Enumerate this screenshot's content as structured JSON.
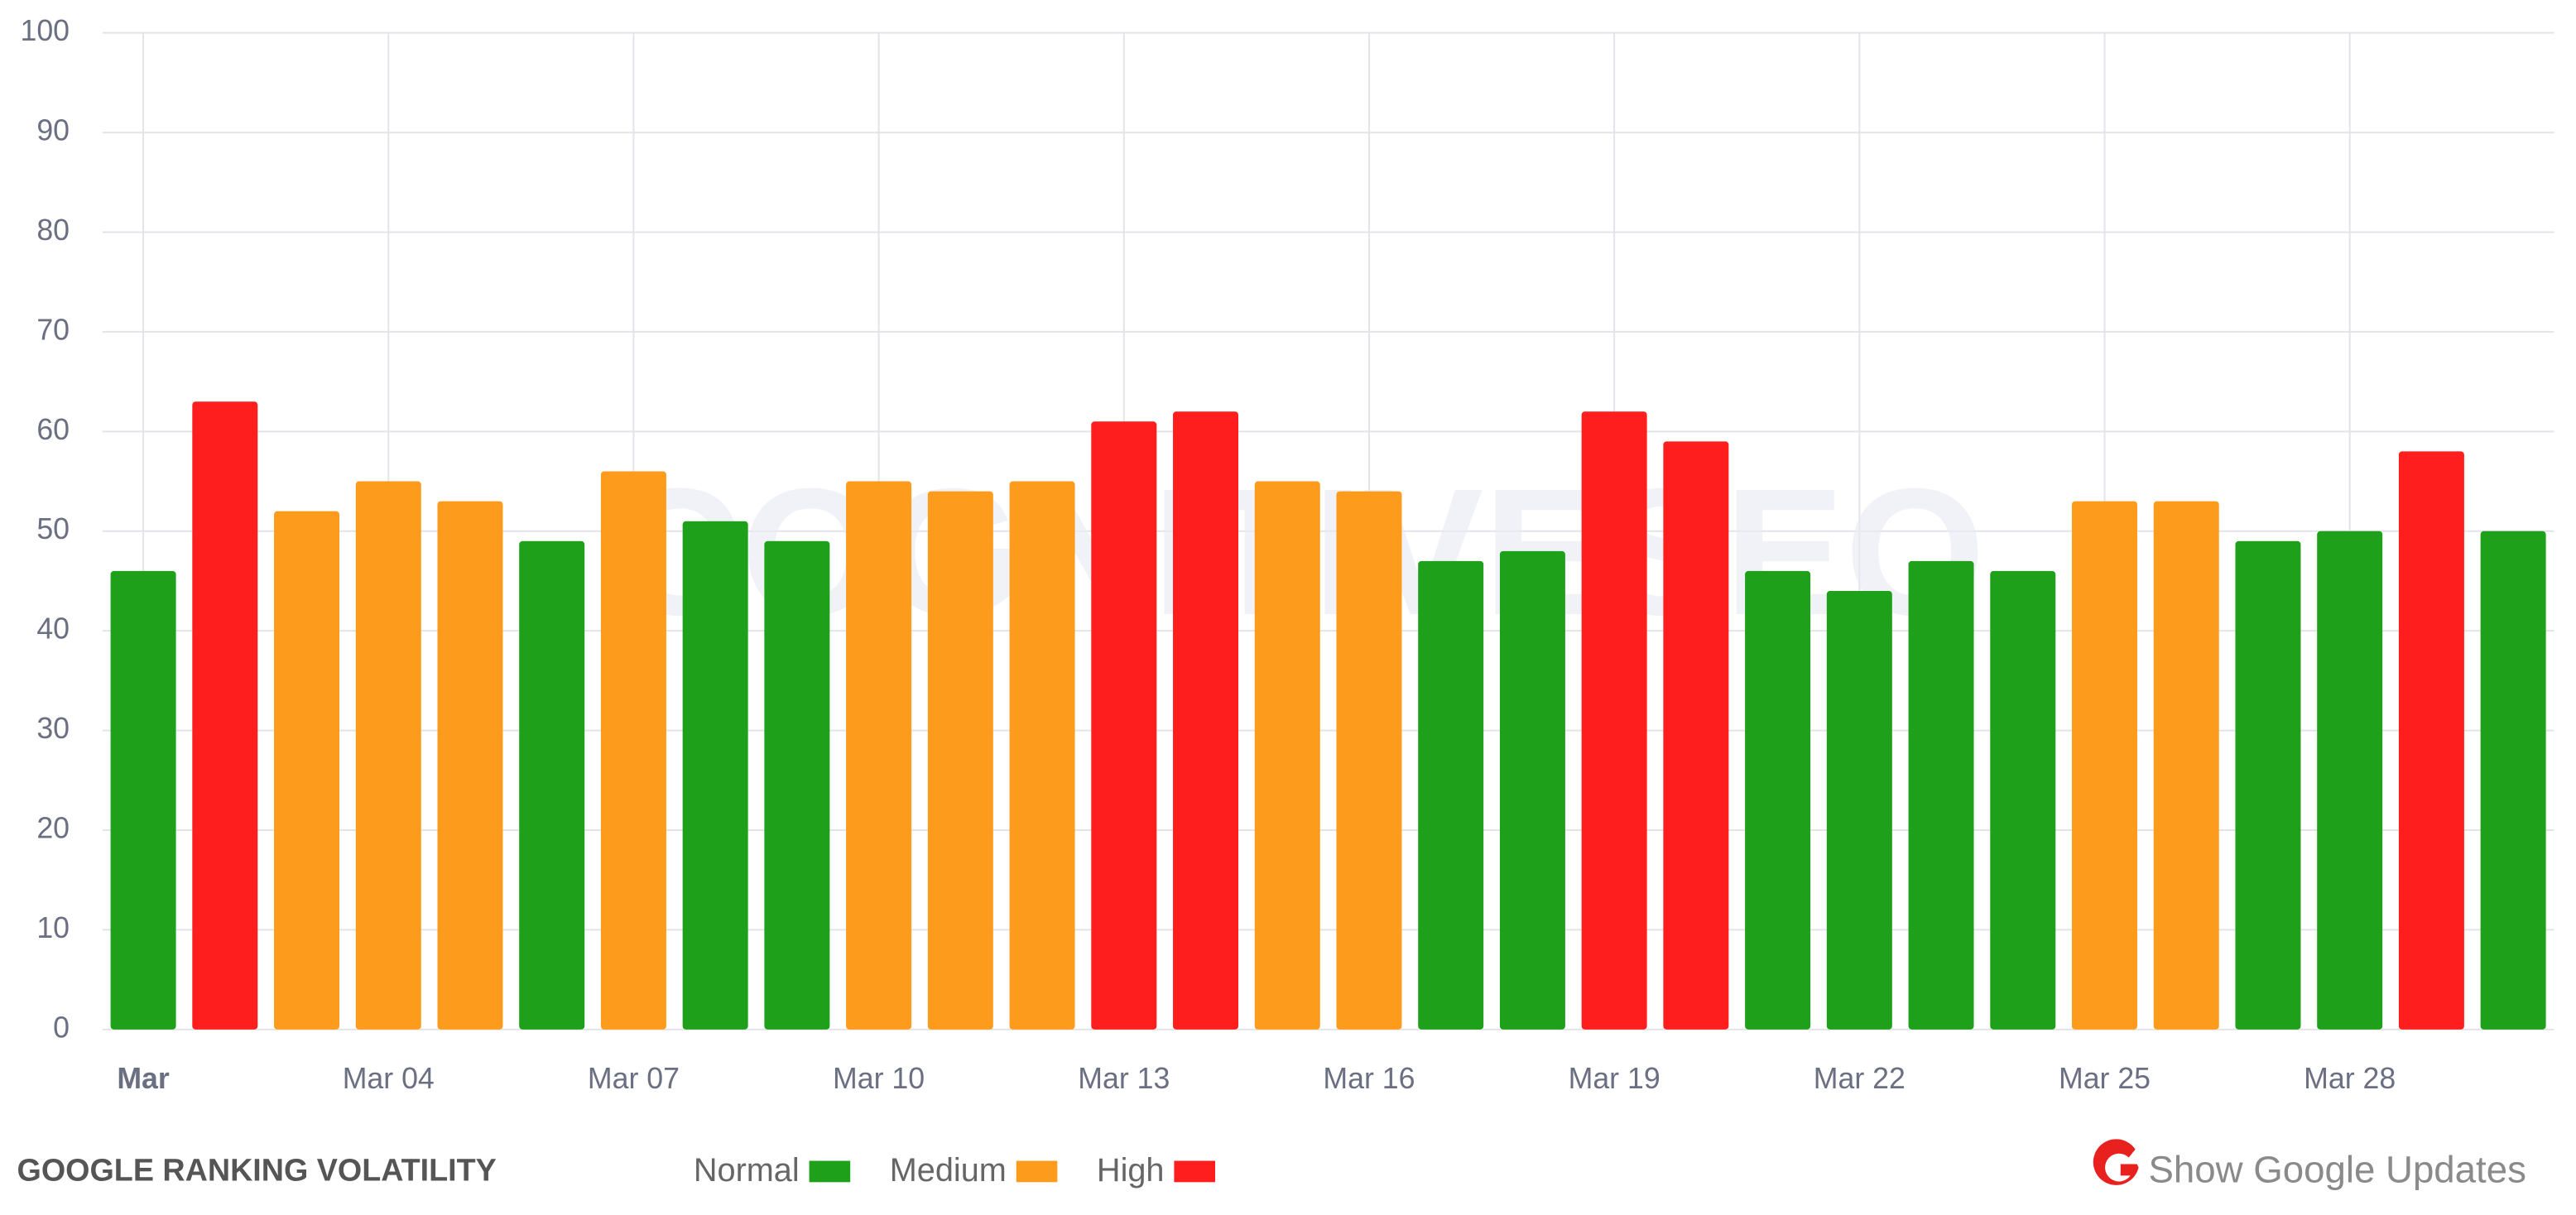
{
  "chart_data": {
    "type": "bar",
    "title": "GOOGLE RANKING VOLATILITY",
    "watermark": "COGNITIVESEO",
    "categories": [
      "Mar",
      null,
      null,
      "Mar 04",
      null,
      null,
      "Mar 07",
      null,
      null,
      "Mar 10",
      null,
      null,
      "Mar 13",
      null,
      null,
      "Mar 16",
      null,
      null,
      "Mar 19",
      null,
      null,
      "Mar 22",
      null,
      null,
      "Mar 25",
      null,
      null,
      "Mar 28",
      null,
      null
    ],
    "values": [
      46,
      63,
      52,
      55,
      53,
      49,
      56,
      51,
      49,
      55,
      54,
      55,
      61,
      62,
      55,
      54,
      47,
      48,
      62,
      59,
      46,
      44,
      47,
      46,
      53,
      53,
      49,
      50,
      58,
      50
    ],
    "colors": [
      "#1ea01a",
      "#fe1e1e",
      "#fd9b1c",
      "#fd9b1c",
      "#fd9b1c",
      "#1ea01a",
      "#fd9b1c",
      "#1ea01a",
      "#1ea01a",
      "#fd9b1c",
      "#fd9b1c",
      "#fd9b1c",
      "#fe1e1e",
      "#fe1e1e",
      "#fd9b1c",
      "#fd9b1c",
      "#1ea01a",
      "#1ea01a",
      "#fe1e1e",
      "#fe1e1e",
      "#1ea01a",
      "#1ea01a",
      "#1ea01a",
      "#1ea01a",
      "#fd9b1c",
      "#fd9b1c",
      "#1ea01a",
      "#1ea01a",
      "#fe1e1e",
      "#1ea01a"
    ],
    "legend": [
      {
        "name": "Normal",
        "color": "#1ea01a"
      },
      {
        "name": "Medium",
        "color": "#fd9b1c"
      },
      {
        "name": "High",
        "color": "#fe1e1e"
      }
    ],
    "ylim": [
      0,
      100
    ],
    "yticks": [
      0,
      10,
      20,
      30,
      40,
      50,
      60,
      70,
      80,
      90,
      100
    ],
    "grid": true
  },
  "controls": {
    "show_updates": "Show Google Updates"
  }
}
